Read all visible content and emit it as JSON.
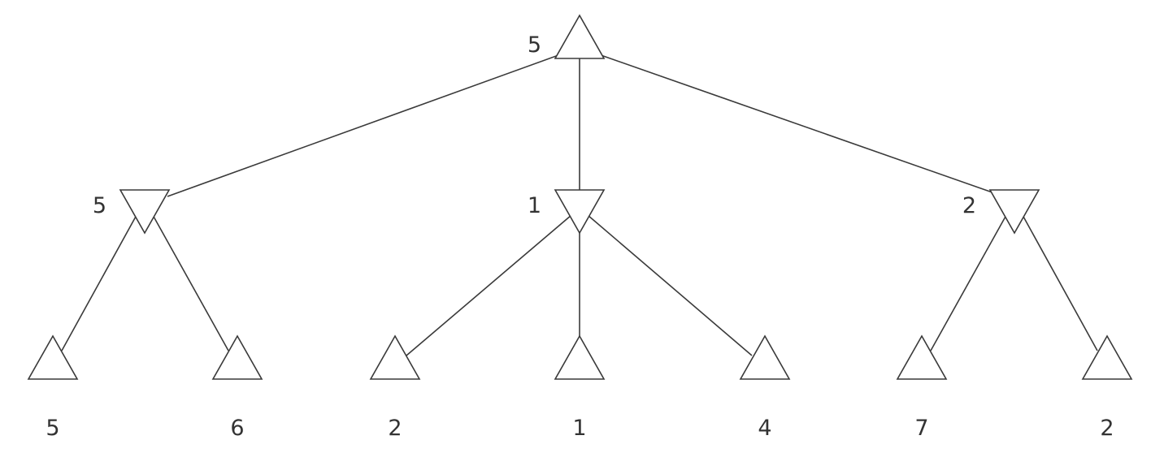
{
  "tree": {
    "root": {
      "type": "max",
      "value": "5"
    },
    "min_nodes": [
      {
        "type": "min",
        "value": "5"
      },
      {
        "type": "min",
        "value": "1"
      },
      {
        "type": "min",
        "value": "2"
      }
    ],
    "leaves": [
      {
        "type": "max",
        "parent": 0,
        "value": "5"
      },
      {
        "type": "max",
        "parent": 0,
        "value": "6"
      },
      {
        "type": "max",
        "parent": 1,
        "value": "2"
      },
      {
        "type": "max",
        "parent": 1,
        "value": "1"
      },
      {
        "type": "max",
        "parent": 1,
        "value": "4"
      },
      {
        "type": "max",
        "parent": 2,
        "value": "7"
      },
      {
        "type": "max",
        "parent": 2,
        "value": "2"
      }
    ]
  },
  "colors": {
    "stroke": "#3a3a3a",
    "text": "#333333",
    "background": "#ffffff"
  },
  "icons": {
    "max_node": "up-triangle-icon",
    "min_node": "down-triangle-icon"
  }
}
